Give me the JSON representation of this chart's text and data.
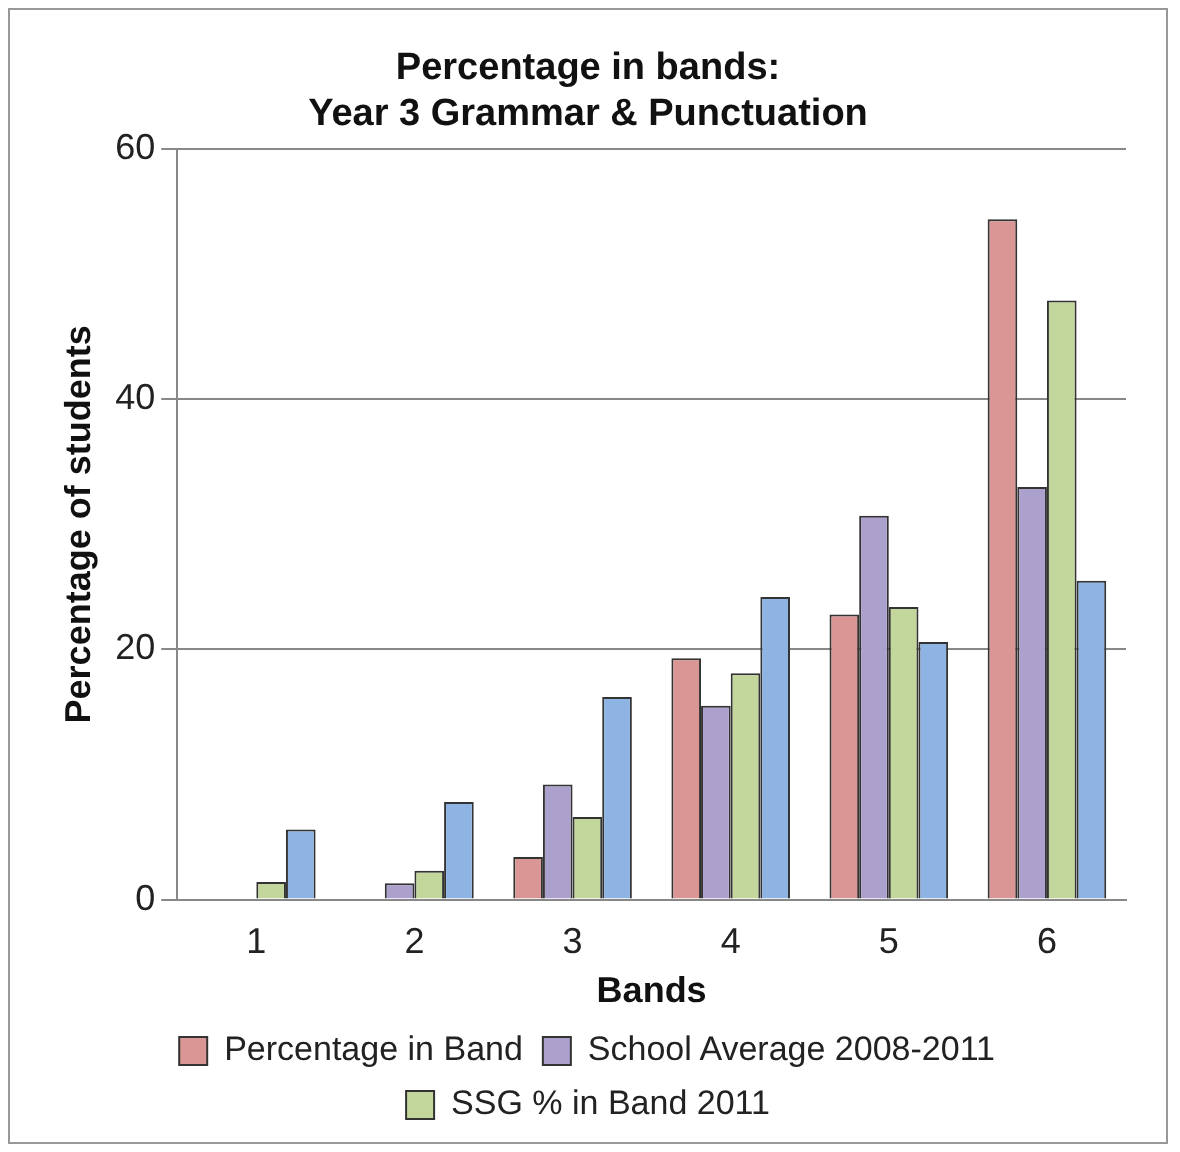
{
  "chart_data": {
    "type": "bar",
    "title": "Percentage in bands:\nYear 3 Grammar & Punctuation",
    "xlabel": "Bands",
    "ylabel": "Percentage of students",
    "categories": [
      "1",
      "2",
      "3",
      "4",
      "5",
      "6"
    ],
    "series": [
      {
        "name": "Percentage in Band",
        "color": "#d99694",
        "values": [
          0,
          0,
          3.4,
          19.3,
          22.8,
          54.4
        ]
      },
      {
        "name": "School Average 2008-2011",
        "color": "#aca0cc",
        "values": [
          0,
          1.3,
          9.2,
          15.5,
          30.7,
          33.0
        ]
      },
      {
        "name": "SSG % in Band 2011",
        "color": "#c3d69b",
        "values": [
          1.4,
          2.3,
          6.6,
          18.1,
          23.4,
          47.9
        ]
      },
      {
        "color": "#8eb4e3",
        "values": [
          5.6,
          7.8,
          16.2,
          24.2,
          20.6,
          25.5
        ]
      }
    ],
    "ylim": [
      0,
      60
    ],
    "yticks": [
      0,
      20,
      40,
      60
    ],
    "grid": "y",
    "legend": "bottom"
  }
}
